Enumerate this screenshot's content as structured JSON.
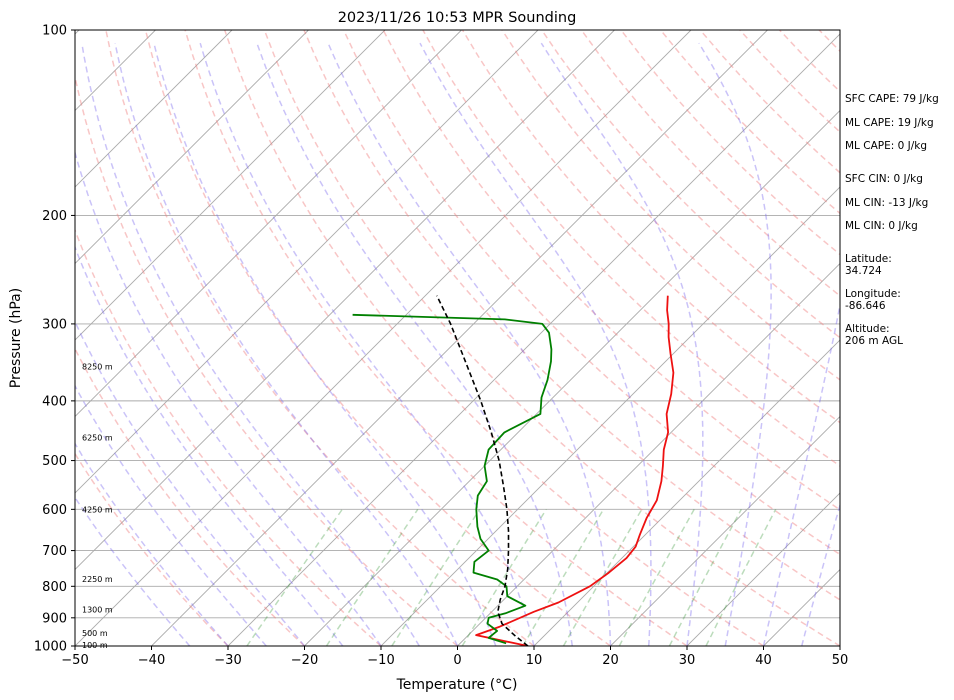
{
  "chart_data": {
    "type": "line",
    "diagram": "skew-t",
    "title": "2023/11/26 10:53 MPR Sounding",
    "xlabel": "Temperature (°C)",
    "ylabel": "Pressure (hPa)",
    "xlim": [
      -50,
      50
    ],
    "ylim_hpa": [
      1000,
      100
    ],
    "y_scale": "log",
    "x_ticks": [
      "−50",
      "−40",
      "−30",
      "−20",
      "−10",
      "0",
      "10",
      "20",
      "30",
      "40",
      "50"
    ],
    "x_tick_values": [
      -50,
      -40,
      -30,
      -20,
      -10,
      0,
      10,
      20,
      30,
      40,
      50
    ],
    "y_ticks": [
      "100",
      "200",
      "300",
      "400",
      "500",
      "600",
      "700",
      "800",
      "900",
      "1000"
    ],
    "y_tick_values": [
      100,
      200,
      300,
      400,
      500,
      600,
      700,
      800,
      900,
      1000
    ],
    "grid": true,
    "colors": {
      "temperature": "#ee1111",
      "dewpoint": "#008000",
      "parcel": "#000000",
      "isotherm": "#aaaaaa",
      "dry_adiabat": "#f08080",
      "moist_adiabat": "#7b68ee",
      "mixing_ratio": "#228b22",
      "grid": "#aaaaaa"
    },
    "series": [
      {
        "key": "temperature",
        "points": [
          [
            1000,
            9.2
          ],
          [
            960,
            1.0
          ],
          [
            930,
            3.0
          ],
          [
            880,
            5.5
          ],
          [
            850,
            7.5
          ],
          [
            800,
            9.5
          ],
          [
            760,
            10.2
          ],
          [
            720,
            10.6
          ],
          [
            690,
            10.3
          ],
          [
            660,
            9.3
          ],
          [
            620,
            8.0
          ],
          [
            580,
            7.0
          ],
          [
            540,
            5.1
          ],
          [
            510,
            3.3
          ],
          [
            480,
            1.3
          ],
          [
            450,
            -0.4
          ],
          [
            420,
            -3.0
          ],
          [
            390,
            -5.0
          ],
          [
            360,
            -7.5
          ],
          [
            335,
            -10.4
          ],
          [
            315,
            -12.8
          ],
          [
            300,
            -14.5
          ],
          [
            285,
            -16.5
          ],
          [
            270,
            -18.3
          ]
        ]
      },
      {
        "key": "dewpoint",
        "points": [
          [
            990,
            6.0
          ],
          [
            970,
            3.0
          ],
          [
            945,
            3.2
          ],
          [
            920,
            1.0
          ],
          [
            900,
            0.4
          ],
          [
            885,
            2.0
          ],
          [
            860,
            3.6
          ],
          [
            830,
            0.0
          ],
          [
            800,
            -1.4
          ],
          [
            780,
            -3.5
          ],
          [
            760,
            -7.5
          ],
          [
            730,
            -8.8
          ],
          [
            700,
            -8.4
          ],
          [
            670,
            -11.0
          ],
          [
            640,
            -13.0
          ],
          [
            600,
            -15.4
          ],
          [
            570,
            -17.0
          ],
          [
            540,
            -17.7
          ],
          [
            510,
            -20.0
          ],
          [
            480,
            -21.6
          ],
          [
            450,
            -21.8
          ],
          [
            420,
            -19.5
          ],
          [
            395,
            -21.5
          ],
          [
            370,
            -23.0
          ],
          [
            345,
            -25.0
          ],
          [
            330,
            -26.5
          ],
          [
            310,
            -29.0
          ],
          [
            300,
            -31.0
          ],
          [
            295,
            -36.5
          ],
          [
            290,
            -57.0
          ]
        ]
      },
      {
        "key": "parcel",
        "points": [
          [
            1000,
            9.2
          ],
          [
            960,
            6.0
          ],
          [
            920,
            2.9
          ],
          [
            880,
            0.8
          ],
          [
            840,
            -0.5
          ],
          [
            800,
            -1.6
          ],
          [
            750,
            -3.5
          ],
          [
            700,
            -5.8
          ],
          [
            650,
            -8.4
          ],
          [
            600,
            -11.4
          ],
          [
            550,
            -14.9
          ],
          [
            500,
            -18.8
          ],
          [
            450,
            -23.5
          ],
          [
            400,
            -29.0
          ],
          [
            350,
            -35.5
          ],
          [
            300,
            -43.0
          ],
          [
            270,
            -48.5
          ]
        ]
      }
    ],
    "height_labels": [
      {
        "text": "8250 m",
        "p": 352
      },
      {
        "text": "6250 m",
        "p": 459
      },
      {
        "text": "4250 m",
        "p": 600
      },
      {
        "text": "2250 m",
        "p": 778
      },
      {
        "text": "1300 m",
        "p": 872
      },
      {
        "text": "500 m",
        "p": 953
      },
      {
        "text": "100 m",
        "p": 996
      }
    ],
    "side_text": [
      "SFC CAPE: 79 J/kg",
      "ML CAPE: 19 J/kg",
      "ML CAPE: 0 J/kg",
      "SFC CIN: 0 J/kg",
      "ML CIN: -13 J/kg",
      "ML CIN: 0 J/kg",
      "Latitude:",
      "34.724",
      "Longitude:",
      "-86.646",
      "Altitude:",
      "206 m AGL"
    ]
  }
}
